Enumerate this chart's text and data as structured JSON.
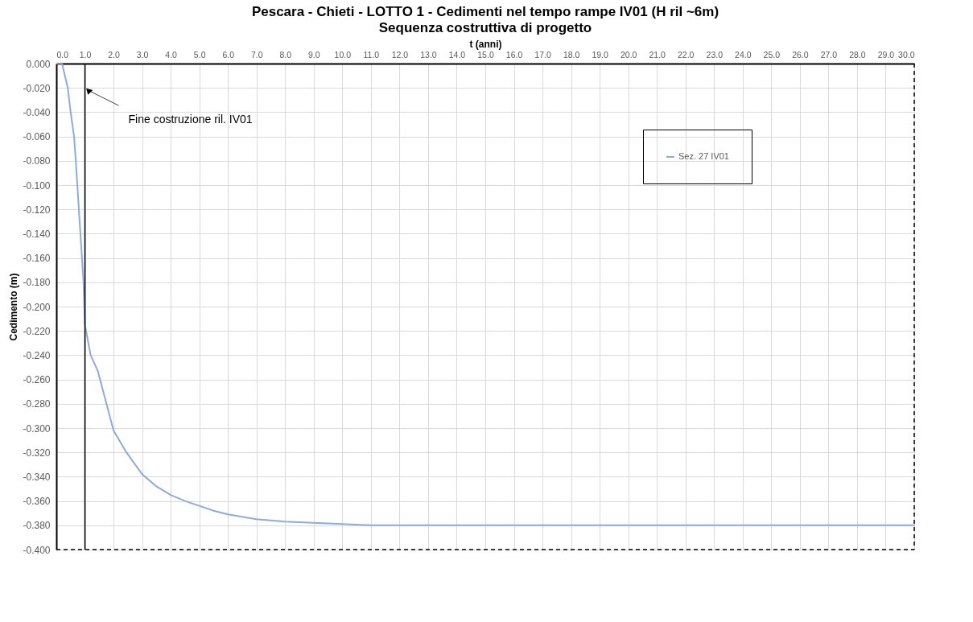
{
  "chart_data": {
    "type": "line",
    "title": "Pescara - Chieti - LOTTO 1 - Cedimenti nel tempo rampe IV01 (H ril ~6m)",
    "subtitle": "Sequenza costruttiva di progetto",
    "xlabel": "t (anni)",
    "ylabel": "Cedimento (m)",
    "x": [
      0,
      0.2,
      0.4,
      0.5,
      0.62,
      0.68,
      0.95,
      1.0,
      1.2,
      1.45,
      2.0,
      2.45,
      3.0,
      3.5,
      4.0,
      4.5,
      5.0,
      5.5,
      6.0,
      7.0,
      8.0,
      9.0,
      10.0,
      11.0,
      30.0
    ],
    "series": [
      {
        "name": "Sez. 27 IV01",
        "color": "#8faadc",
        "values": [
          0,
          0,
          -0.02,
          -0.04,
          -0.06,
          -0.08,
          -0.18,
          -0.215,
          -0.24,
          -0.253,
          -0.302,
          -0.32,
          -0.338,
          -0.348,
          -0.355,
          -0.36,
          -0.364,
          -0.368,
          -0.371,
          -0.375,
          -0.377,
          -0.378,
          -0.379,
          -0.38,
          -0.38
        ]
      }
    ],
    "xlim": [
      0,
      30
    ],
    "ylim": [
      -0.4,
      0
    ],
    "xticks": [
      {
        "value": 0,
        "label": "0.0"
      },
      {
        "value": 1,
        "label": "1.0"
      },
      {
        "value": 2,
        "label": "2.0"
      },
      {
        "value": 3,
        "label": "3.0"
      },
      {
        "value": 4,
        "label": "4.0"
      },
      {
        "value": 5,
        "label": "5.0"
      },
      {
        "value": 6,
        "label": "6.0"
      },
      {
        "value": 7,
        "label": "7.0"
      },
      {
        "value": 8,
        "label": "8.0"
      },
      {
        "value": 9,
        "label": "9.0"
      },
      {
        "value": 10,
        "label": "10.0"
      },
      {
        "value": 11,
        "label": "11.0"
      },
      {
        "value": 12,
        "label": "12.0"
      },
      {
        "value": 13,
        "label": "13.0"
      },
      {
        "value": 14,
        "label": "14.0"
      },
      {
        "value": 15,
        "label": "15.0"
      },
      {
        "value": 16,
        "label": "16.0"
      },
      {
        "value": 17,
        "label": "17.0"
      },
      {
        "value": 18,
        "label": "18.0"
      },
      {
        "value": 19,
        "label": "19.0"
      },
      {
        "value": 20,
        "label": "20.0"
      },
      {
        "value": 21,
        "label": "21.0"
      },
      {
        "value": 22,
        "label": "22.0"
      },
      {
        "value": 23,
        "label": "23.0"
      },
      {
        "value": 24,
        "label": "24.0"
      },
      {
        "value": 25,
        "label": "25.0"
      },
      {
        "value": 26,
        "label": "26.0"
      },
      {
        "value": 27,
        "label": "27.0"
      },
      {
        "value": 28,
        "label": "28.0"
      },
      {
        "value": 29,
        "label": "29.0"
      },
      {
        "value": 30,
        "label": "30.0"
      }
    ],
    "yticks": [
      {
        "value": 0,
        "label": "0.000"
      },
      {
        "value": -0.02,
        "label": "-0.020"
      },
      {
        "value": -0.04,
        "label": "-0.040"
      },
      {
        "value": -0.06,
        "label": "-0.060"
      },
      {
        "value": -0.08,
        "label": "-0.080"
      },
      {
        "value": -0.1,
        "label": "-0.100"
      },
      {
        "value": -0.12,
        "label": "-0.120"
      },
      {
        "value": -0.14,
        "label": "-0.140"
      },
      {
        "value": -0.16,
        "label": "-0.160"
      },
      {
        "value": -0.18,
        "label": "-0.180"
      },
      {
        "value": -0.2,
        "label": "-0.200"
      },
      {
        "value": -0.22,
        "label": "-0.220"
      },
      {
        "value": -0.24,
        "label": "-0.240"
      },
      {
        "value": -0.26,
        "label": "-0.260"
      },
      {
        "value": -0.28,
        "label": "-0.280"
      },
      {
        "value": -0.3,
        "label": "-0.300"
      },
      {
        "value": -0.32,
        "label": "-0.320"
      },
      {
        "value": -0.34,
        "label": "-0.340"
      },
      {
        "value": -0.36,
        "label": "-0.360"
      },
      {
        "value": -0.38,
        "label": "-0.380"
      },
      {
        "value": -0.4,
        "label": "-0.400"
      }
    ],
    "ref_lines": [
      {
        "axis": "x",
        "value": 1.0,
        "color": "#000000"
      }
    ],
    "annotations": [
      {
        "text": "Fine costruzione ril. IV01",
        "x": 1.0,
        "y": -0.02
      }
    ],
    "grid": true,
    "legend": "top right",
    "marker": "none",
    "line_style": "solid"
  }
}
